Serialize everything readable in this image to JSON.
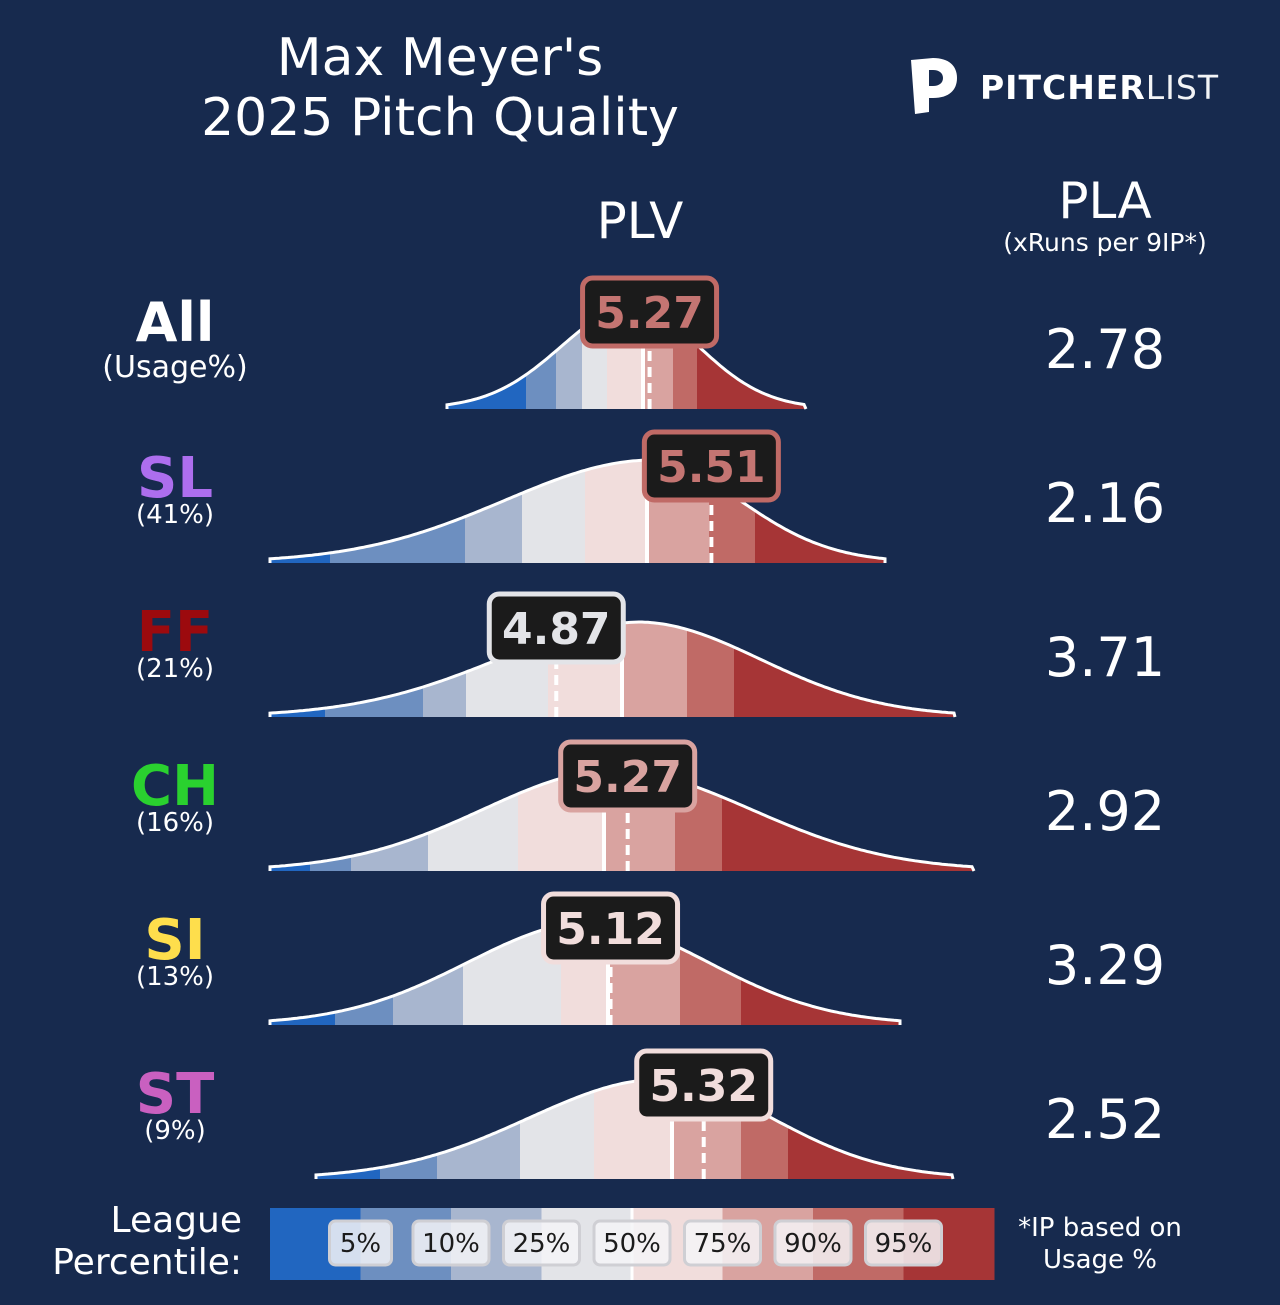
{
  "header": {
    "title_line1": "Max Meyer's",
    "title_line2": "2025 Pitch Quality",
    "logo_bold": "PITCHER",
    "logo_light": "LIST",
    "logo_icon": "pitcherlist-p-icon"
  },
  "columns": {
    "plv": "PLV",
    "pla": "PLA",
    "pla_sub": "(xRuns per 9IP*)"
  },
  "legend": {
    "title_line1": "League",
    "title_line2": "Percentile:",
    "note_line1": "*IP based on",
    "note_line2": "Usage %",
    "percentiles": [
      "5%",
      "10%",
      "25%",
      "50%",
      "75%",
      "90%",
      "95%"
    ],
    "colors": [
      "#2166c0",
      "#6d8fc0",
      "#a8b6cf",
      "#e3e4e8",
      "#f1dddc",
      "#d9a3a0",
      "#c06a66",
      "#a63536"
    ]
  },
  "chart_data": {
    "type": "density",
    "x_axis": "PLV",
    "rows": [
      {
        "label": "All",
        "usage": "(Usage%)",
        "label_color": "#ffffff",
        "plv": "5.27",
        "plv_value": 5.27,
        "pla": "2.78",
        "badge_border": "#c06a66",
        "badge_text": "#c47572"
      },
      {
        "label": "SL",
        "usage": "(41%)",
        "label_color": "#ad6eee",
        "plv": "5.51",
        "plv_value": 5.51,
        "pla": "2.16",
        "badge_border": "#c06a66",
        "badge_text": "#c47572"
      },
      {
        "label": "FF",
        "usage": "(21%)",
        "label_color": "#9c0a0e",
        "plv": "4.87",
        "plv_value": 4.87,
        "pla": "3.71",
        "badge_border": "#e3e4e8",
        "badge_text": "#e3e4e8"
      },
      {
        "label": "CH",
        "usage": "(16%)",
        "label_color": "#2ad12f",
        "plv": "5.27",
        "plv_value": 5.27,
        "pla": "2.92",
        "badge_border": "#d9a3a0",
        "badge_text": "#d9a3a0"
      },
      {
        "label": "SI",
        "usage": "(13%)",
        "label_color": "#fede4c",
        "plv": "5.12",
        "plv_value": 5.12,
        "pla": "3.29",
        "badge_border": "#f1dddc",
        "badge_text": "#f1dddc"
      },
      {
        "label": "ST",
        "usage": "(9%)",
        "label_color": "#c960c0",
        "plv": "5.32",
        "plv_value": 5.32,
        "pla": "2.52",
        "badge_border": "#f1dddc",
        "badge_text": "#f1dddc"
      }
    ]
  }
}
